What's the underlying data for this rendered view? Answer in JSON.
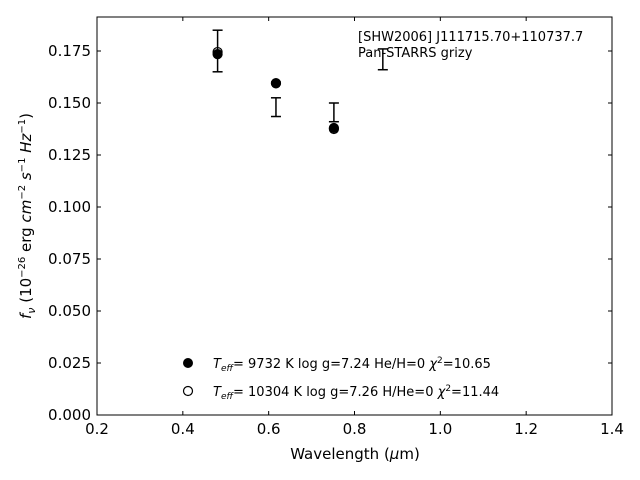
{
  "chart_data": {
    "type": "scatter",
    "title": "",
    "xlabel": "Wavelength (μm)",
    "ylabel": "f_ν (10^-26 erg cm^-2 s^-1 Hz^-1)",
    "xlim": [
      0.2,
      1.4
    ],
    "ylim": [
      0.0,
      0.19
    ],
    "xticks": [
      0.2,
      0.4,
      0.6,
      0.8,
      1.0,
      1.2,
      1.4
    ],
    "xtick_labels": [
      "0.2",
      "0.4",
      "0.6",
      "0.8",
      "1.0",
      "1.2",
      "1.4"
    ],
    "yticks": [
      0.0,
      0.025,
      0.05,
      0.075,
      0.1,
      0.125,
      0.15,
      0.175
    ],
    "ytick_labels": [
      "0.000",
      "0.025",
      "0.050",
      "0.075",
      "0.100",
      "0.125",
      "0.150",
      "0.175"
    ],
    "grid": false,
    "annotation": [
      "[SHW2006] J111715.70+110737.7",
      "Pan-STARRS grizy"
    ],
    "observed": {
      "x": [
        0.481,
        0.617,
        0.752,
        0.866
      ],
      "y": [
        0.175,
        0.148,
        0.1455,
        0.171
      ],
      "err": [
        0.01,
        0.0045,
        0.0045,
        0.005
      ]
    },
    "series": [
      {
        "name": "T_eff=  9732 K  log g=7.24  He/H=0  χ²=10.65",
        "marker": "filled-circle",
        "x": [
          0.481,
          0.617,
          0.752
        ],
        "y": [
          0.1735,
          0.1595,
          0.138
        ]
      },
      {
        "name": "T_eff= 10304 K  log g=7.26  H/He=0  χ²=11.44",
        "marker": "open-circle",
        "x": [
          0.481,
          0.617,
          0.752
        ],
        "y": [
          0.1745,
          0.1595,
          0.1375
        ]
      }
    ],
    "legend_position": "lower-center",
    "legend": [
      {
        "teff": "9732 K",
        "logg": "log g=7.24",
        "comp": "He/H=0",
        "chi": "=10.65",
        "marker": "filled"
      },
      {
        "teff": "10304 K",
        "logg": "log g=7.26",
        "comp": "H/He=0",
        "chi": "=11.44",
        "marker": "open"
      }
    ]
  }
}
